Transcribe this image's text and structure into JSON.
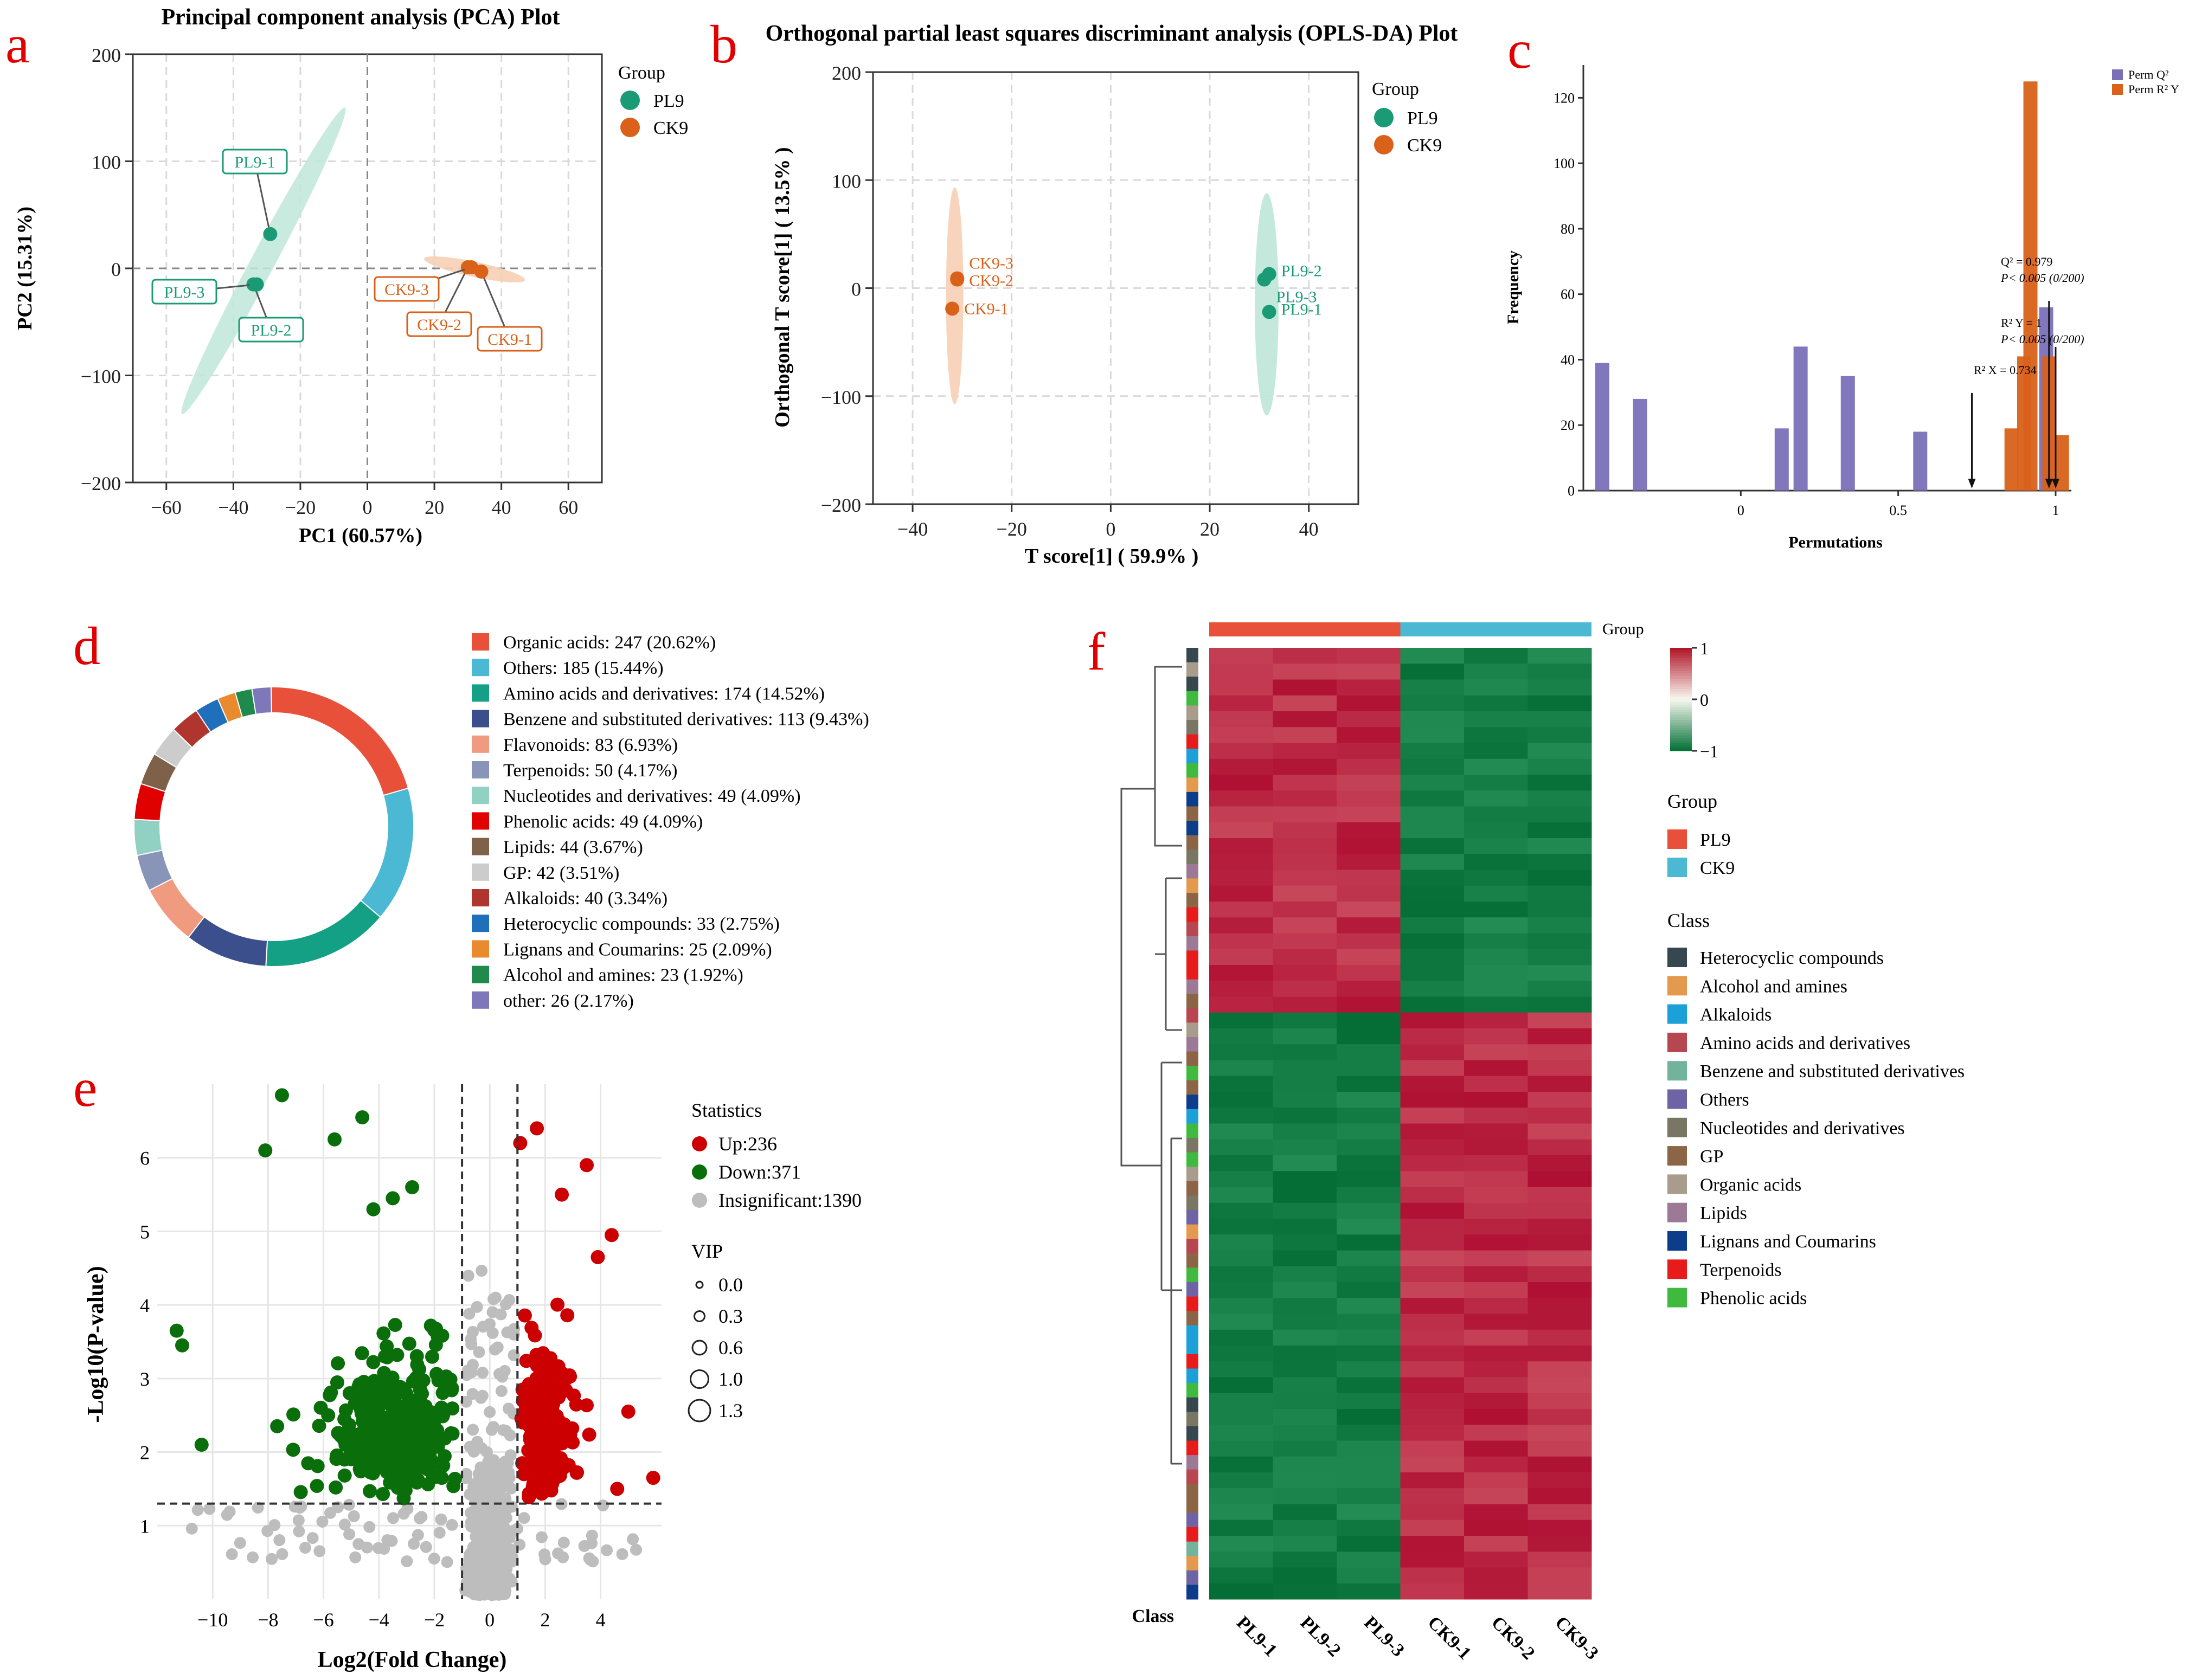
{
  "panel_letters": {
    "a": "a",
    "b": "b",
    "c": "c",
    "d": "d",
    "e": "e",
    "f": "f"
  },
  "colors": {
    "pl9": "#1a9b76",
    "ck9": "#d9611a",
    "ellipse_pl9": "#bfe6d9",
    "ellipse_ck9": "#f6cfb4",
    "perm_q2": "#7a70b8",
    "perm_r2y": "#d9611a",
    "up": "#cc0000",
    "down": "#0a6e0a",
    "insig": "#bdbdbd"
  },
  "chart_data": [
    {
      "id": "pca",
      "type": "scatter",
      "title": "Principal component analysis (PCA) Plot",
      "xlabel": "PC1 (60.57%)",
      "ylabel": "PC2 (15.31%)",
      "xlim": [
        -70,
        70
      ],
      "ylim": [
        -200,
        200
      ],
      "xticks": [
        -60,
        -40,
        -20,
        0,
        20,
        40,
        60
      ],
      "yticks": [
        -200,
        -100,
        0,
        100,
        200
      ],
      "legend": {
        "title": "Group",
        "entries": [
          "PL9",
          "CK9"
        ]
      },
      "points": [
        {
          "label": "PL9-1",
          "group": "PL9",
          "x": -29,
          "y": 32
        },
        {
          "label": "PL9-2",
          "group": "PL9",
          "x": -34,
          "y": -15
        },
        {
          "label": "PL9-3",
          "group": "PL9",
          "x": -33,
          "y": -15
        },
        {
          "label": "CK9-1",
          "group": "CK9",
          "x": 34,
          "y": -3
        },
        {
          "label": "CK9-2",
          "group": "CK9",
          "x": 30,
          "y": 1
        },
        {
          "label": "CK9-3",
          "group": "CK9",
          "x": 31,
          "y": 1
        }
      ]
    },
    {
      "id": "oplsda",
      "type": "scatter",
      "title": "Orthogonal partial least squares discriminant analysis (OPLS-DA) Plot",
      "xlabel": "T score[1] ( 59.9% )",
      "ylabel": "Orthogonal T score[1] ( 13.5% )",
      "xlim": [
        -48,
        50
      ],
      "ylim": [
        -200,
        200
      ],
      "xticks": [
        -40,
        -20,
        0,
        20,
        40
      ],
      "yticks": [
        -200,
        -100,
        0,
        100,
        200
      ],
      "legend": {
        "title": "Group",
        "entries": [
          "PL9",
          "CK9"
        ]
      },
      "points": [
        {
          "label": "PL9-1",
          "group": "PL9",
          "x": 32,
          "y": -22
        },
        {
          "label": "PL9-2",
          "group": "PL9",
          "x": 32,
          "y": 13
        },
        {
          "label": "PL9-3",
          "group": "PL9",
          "x": 31,
          "y": 8
        },
        {
          "label": "CK9-1",
          "group": "CK9",
          "x": -32,
          "y": -19
        },
        {
          "label": "CK9-2",
          "group": "CK9",
          "x": -31,
          "y": 8
        },
        {
          "label": "CK9-3",
          "group": "CK9",
          "x": -31,
          "y": 9
        }
      ]
    },
    {
      "id": "permutation",
      "type": "bar",
      "xlabel": "Permutations",
      "ylabel": "Frequency",
      "xlim": [
        -0.5,
        1.05
      ],
      "ylim": [
        0,
        130
      ],
      "xticks": [
        "0",
        "0.5",
        "1"
      ],
      "yticks": [
        0,
        20,
        40,
        60,
        80,
        100,
        120
      ],
      "legend": [
        "Perm Q²",
        "Perm R² Y"
      ],
      "series": [
        {
          "name": "Perm Q²",
          "bins": [
            [
              -0.44,
              39
            ],
            [
              -0.32,
              28
            ],
            [
              0.13,
              19
            ],
            [
              0.19,
              44
            ],
            [
              0.34,
              35
            ],
            [
              0.57,
              18
            ],
            [
              0.97,
              56
            ]
          ]
        },
        {
          "name": "Perm R² Y",
          "bins": [
            [
              0.86,
              19
            ],
            [
              0.9,
              41
            ],
            [
              0.92,
              125
            ],
            [
              0.98,
              41
            ],
            [
              1.02,
              17
            ]
          ]
        }
      ],
      "annotations": [
        {
          "text": "Q² = 0.979",
          "x": 0.979
        },
        {
          "text": "P< 0.005 (0/200)"
        },
        {
          "text": "R² Y = 1",
          "x": 1.0
        },
        {
          "text": "P< 0.005 (0/200)"
        },
        {
          "text": "R² X = 0.734",
          "x": 0.734
        }
      ]
    },
    {
      "id": "donut",
      "type": "pie",
      "slices": [
        {
          "label": "Organic acids: 247 (20.62%)",
          "value": 247,
          "color": "#e8503a"
        },
        {
          "label": "Others: 185 (15.44%)",
          "value": 185,
          "color": "#4bb8d4"
        },
        {
          "label": "Amino acids and derivatives: 174 (14.52%)",
          "value": 174,
          "color": "#13a084"
        },
        {
          "label": "Benzene and substituted derivatives: 113 (9.43%)",
          "value": 113,
          "color": "#3a4f8c"
        },
        {
          "label": "Flavonoids: 83 (6.93%)",
          "value": 83,
          "color": "#f09a80"
        },
        {
          "label": "Terpenoids: 50 (4.17%)",
          "value": 50,
          "color": "#8894b8"
        },
        {
          "label": "Nucleotides and derivatives: 49 (4.09%)",
          "value": 49,
          "color": "#91d1c3"
        },
        {
          "label": "Phenolic acids: 49 (4.09%)",
          "value": 49,
          "color": "#e00000"
        },
        {
          "label": "Lipids: 44 (3.67%)",
          "value": 44,
          "color": "#7e6148"
        },
        {
          "label": "GP: 42 (3.51%)",
          "value": 42,
          "color": "#cccccc"
        },
        {
          "label": "Alkaloids: 40 (3.34%)",
          "value": 40,
          "color": "#b0352f"
        },
        {
          "label": "Heterocyclic compounds: 33 (2.75%)",
          "value": 33,
          "color": "#1f6fba"
        },
        {
          "label": "Lignans and Coumarins: 25 (2.09%)",
          "value": 25,
          "color": "#e88a2d"
        },
        {
          "label": "Alcohol and amines: 23 (1.92%)",
          "value": 23,
          "color": "#1f8a4c"
        },
        {
          "label": "other: 26 (2.17%)",
          "value": 26,
          "color": "#7e77b9"
        }
      ]
    },
    {
      "id": "volcano",
      "type": "scatter",
      "xlabel": "Log2(Fold Change)",
      "ylabel": "-Log10(P-value)",
      "xlim": [
        -12,
        6.2
      ],
      "ylim": [
        0,
        7
      ],
      "xticks": [
        -10,
        -8,
        -6,
        -4,
        -2,
        0,
        2,
        4
      ],
      "yticks": [
        1,
        2,
        3,
        4,
        5,
        6
      ],
      "thresholds": {
        "x": [
          -1,
          1
        ],
        "y": 1.3
      },
      "legend": {
        "title": "Statistics",
        "entries": [
          "Up:236",
          "Down:371",
          "Insignificant:1390"
        ]
      },
      "vip_legend": {
        "title": "VIP",
        "entries": [
          "0.0",
          "0.3",
          "0.6",
          "1.0",
          "1.3"
        ]
      },
      "counts": {
        "up": 236,
        "down": 371,
        "insignificant": 1390
      },
      "highlight_points": [
        [
          -7.5,
          6.85
        ],
        [
          -4.6,
          6.55
        ],
        [
          -8.1,
          6.1
        ],
        [
          -5.6,
          6.25
        ],
        [
          -2.8,
          5.6
        ],
        [
          -3.5,
          5.45
        ],
        [
          -4.2,
          5.3
        ],
        [
          1.7,
          6.4
        ],
        [
          1.1,
          6.2
        ],
        [
          3.5,
          5.9
        ],
        [
          2.6,
          5.5
        ],
        [
          4.4,
          4.95
        ],
        [
          3.9,
          4.65
        ],
        [
          -11.3,
          3.65
        ],
        [
          -10.4,
          2.1
        ],
        [
          -11.1,
          3.45
        ],
        [
          5.9,
          1.65
        ],
        [
          4.6,
          1.5
        ],
        [
          5.0,
          2.55
        ]
      ]
    },
    {
      "id": "heatmap",
      "type": "heatmap",
      "columns": [
        "PL9-1",
        "PL9-2",
        "PL9-3",
        "CK9-1",
        "CK9-2",
        "CK9-3"
      ],
      "column_groups": [
        "PL9",
        "PL9",
        "PL9",
        "CK9",
        "CK9",
        "CK9"
      ],
      "scale": {
        "min": -1,
        "max": 1,
        "ticks": [
          "1",
          "0",
          "−1"
        ]
      },
      "group_label": "Group",
      "class_axis_label": "Class",
      "legend_group": {
        "title": "Group",
        "entries": [
          {
            "label": "PL9",
            "color": "#e8503a"
          },
          {
            "label": "CK9",
            "color": "#4bb8d4"
          }
        ]
      },
      "legend_class": {
        "title": "Class",
        "entries": [
          {
            "label": "Heterocyclic compounds",
            "color": "#37474f"
          },
          {
            "label": "Alcohol and amines",
            "color": "#e39a4f"
          },
          {
            "label": "Alkaloids",
            "color": "#1ca0d8"
          },
          {
            "label": "Amino acids and derivatives",
            "color": "#b6464f"
          },
          {
            "label": "Benzene and substituted derivatives",
            "color": "#72b39b"
          },
          {
            "label": "Others",
            "color": "#6d63a5"
          },
          {
            "label": "Nucleotides and derivatives",
            "color": "#7a7664"
          },
          {
            "label": "GP",
            "color": "#8b6545"
          },
          {
            "label": "Organic acids",
            "color": "#a99c8c"
          },
          {
            "label": "Lipids",
            "color": "#9c7a96"
          },
          {
            "label": "Lignans and Coumarins",
            "color": "#0b3d8a"
          },
          {
            "label": "Terpenoids",
            "color": "#e81b1b"
          },
          {
            "label": "Phenolic acids",
            "color": "#3fba3f"
          }
        ]
      },
      "block_pattern": {
        "upper_rows_pl9_high": true,
        "lower_rows_ck9_high": true,
        "split_fraction": 0.38
      }
    }
  ]
}
